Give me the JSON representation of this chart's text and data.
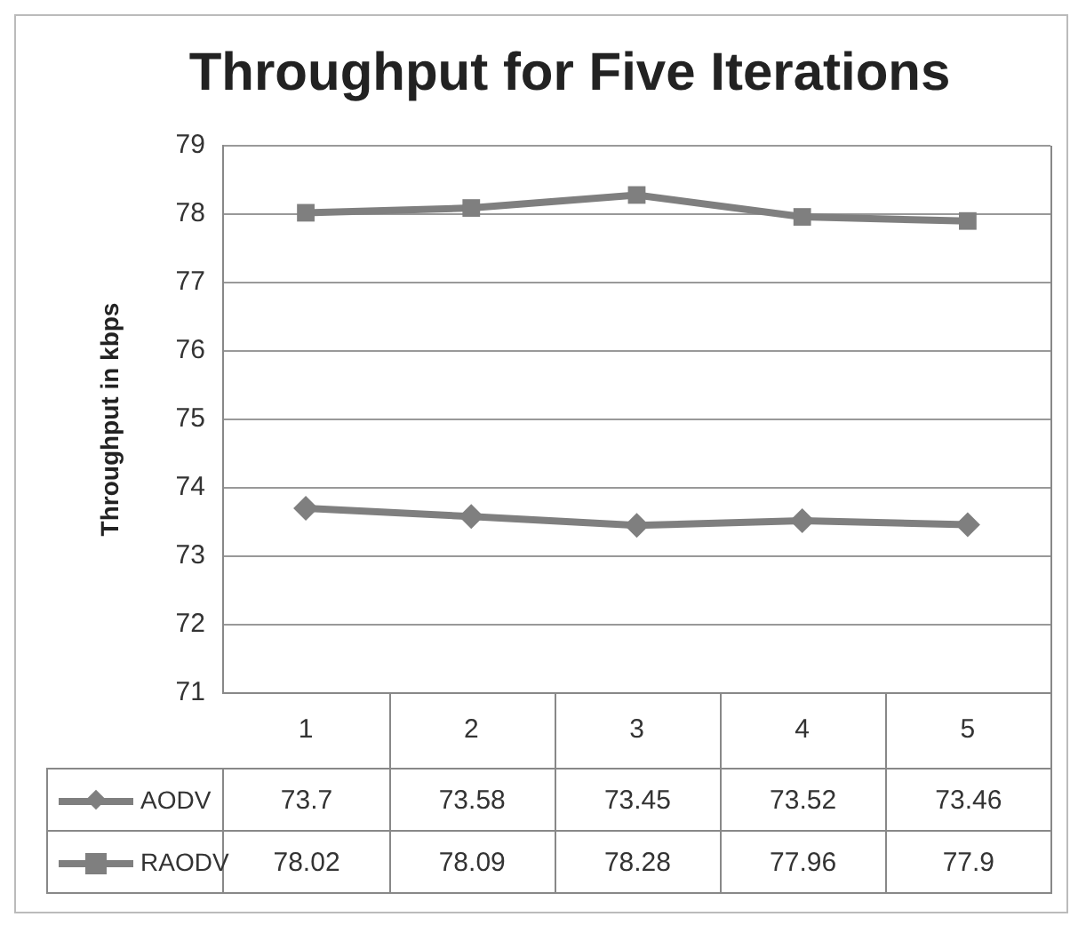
{
  "chart_data": {
    "type": "line",
    "title": "Throughput for Five Iterations",
    "ylabel": "Throughput in kbps",
    "categories": [
      "1",
      "2",
      "3",
      "4",
      "5"
    ],
    "series": [
      {
        "name": "AODV",
        "color": "#7f7f7f",
        "marker": "diamond",
        "values": [
          73.7,
          73.58,
          73.45,
          73.52,
          73.46
        ]
      },
      {
        "name": "RAODV",
        "color": "#7f7f7f",
        "marker": "square",
        "values": [
          78.02,
          78.09,
          78.28,
          77.96,
          77.9
        ]
      }
    ],
    "ylim": [
      71,
      79
    ],
    "yticks": [
      71,
      72,
      73,
      74,
      75,
      76,
      77,
      78,
      79
    ],
    "grid": "y",
    "legend": "bottom",
    "data_labels": true
  }
}
